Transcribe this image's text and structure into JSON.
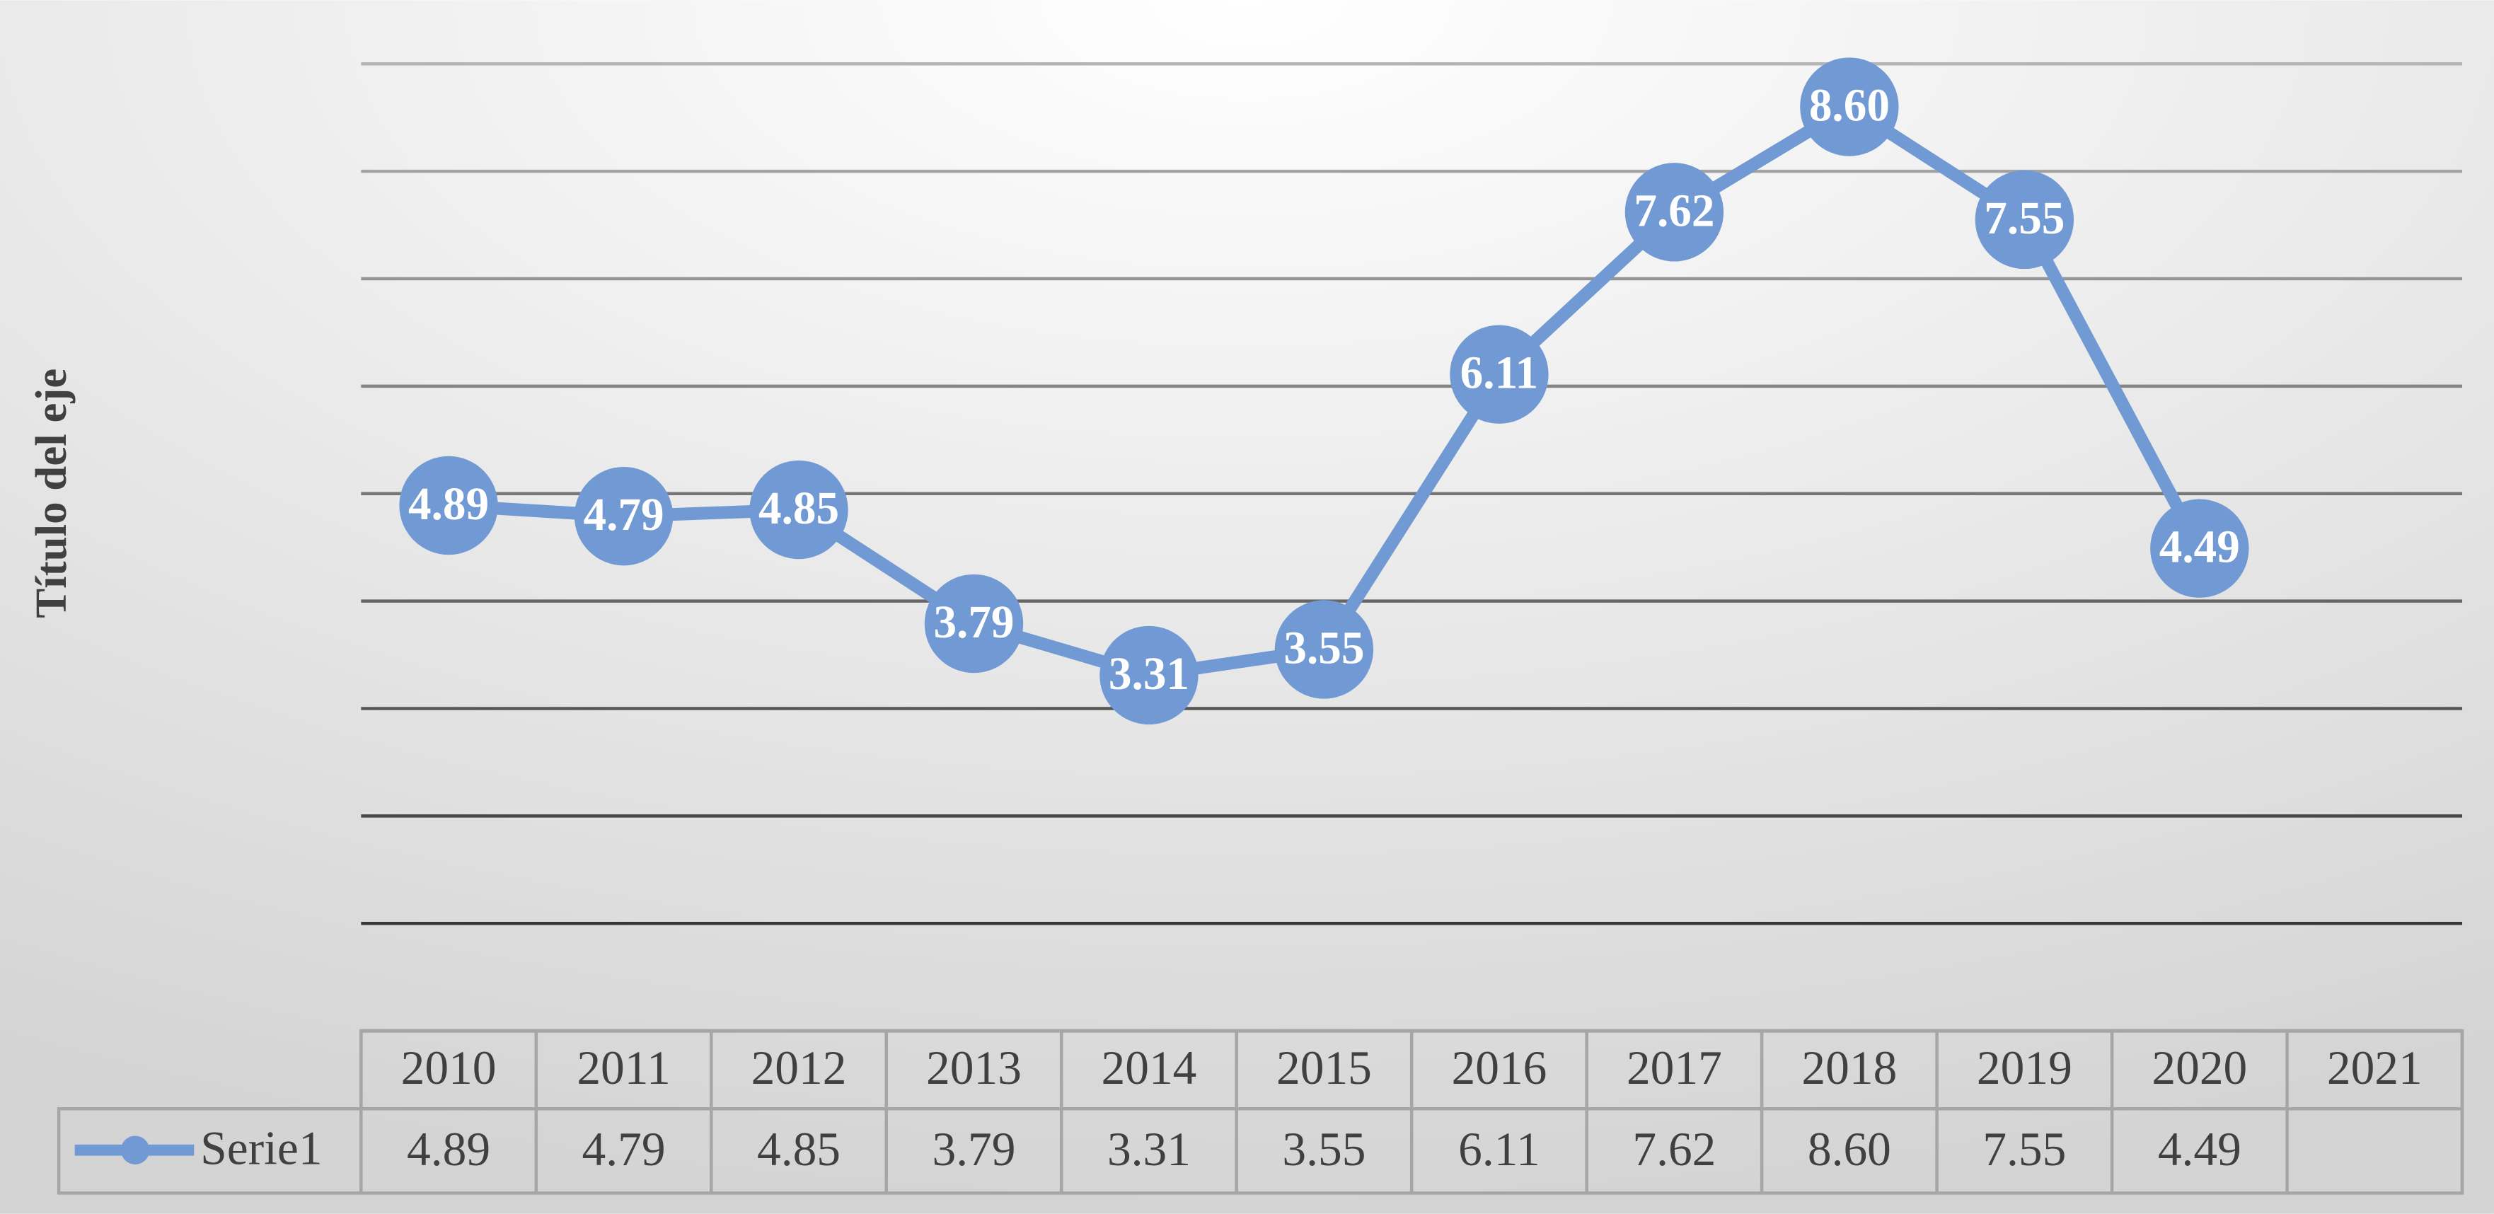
{
  "chart_data": {
    "type": "line",
    "y_axis_title": "Título del eje",
    "categories": [
      "2010",
      "2011",
      "2012",
      "2013",
      "2014",
      "2015",
      "2016",
      "2017",
      "2018",
      "2019",
      "2020",
      "2021"
    ],
    "series": [
      {
        "name": "Serie1",
        "color": "#7199d3",
        "values": [
          4.89,
          4.79,
          4.85,
          3.79,
          3.31,
          3.55,
          6.11,
          7.62,
          8.6,
          7.55,
          4.49,
          null
        ],
        "value_labels": [
          "4.89",
          "4.79",
          "4.85",
          "3.79",
          "3.31",
          "3.55",
          "6.11",
          "7.62",
          "8.60",
          "7.55",
          "4.49",
          null
        ]
      }
    ],
    "ylim": [
      0,
      9
    ],
    "yticks": [
      0,
      1,
      2,
      3,
      4,
      5,
      6,
      7,
      8,
      9
    ],
    "grid": true
  }
}
